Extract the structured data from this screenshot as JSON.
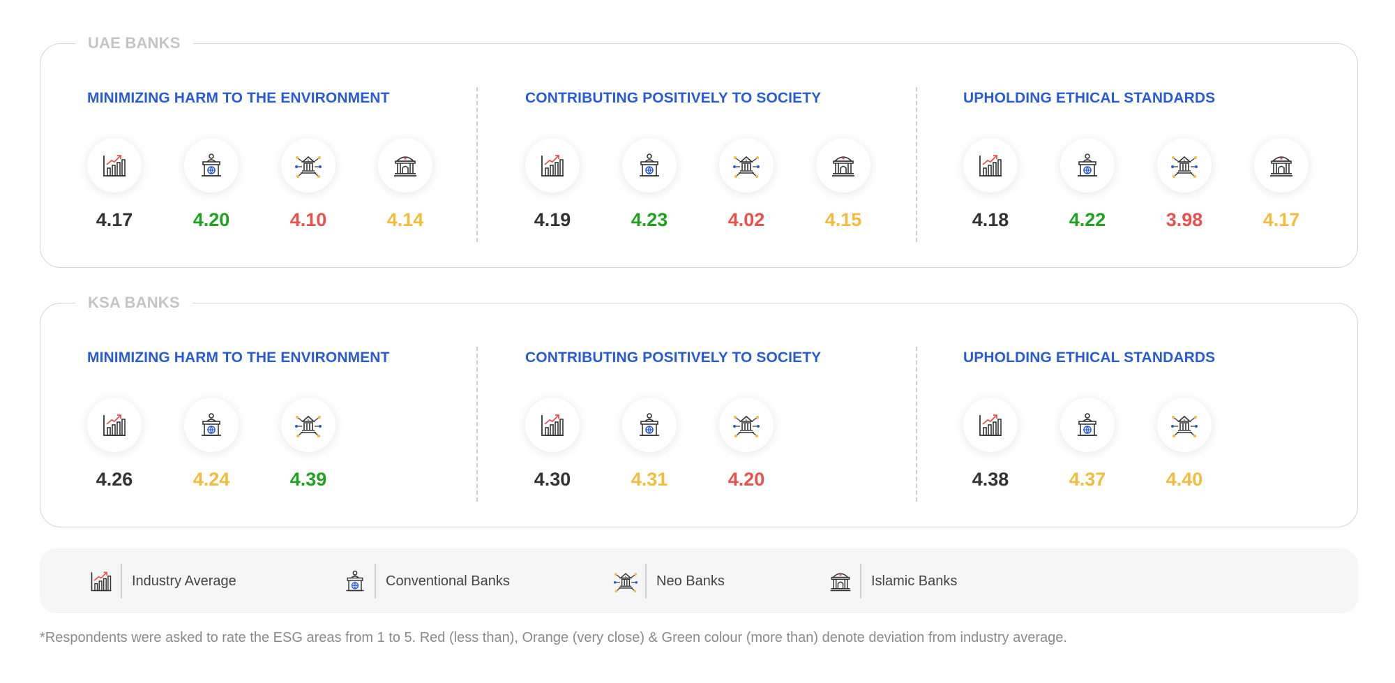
{
  "colors": {
    "title_blue": "#2a5bd7",
    "industry": "#333333",
    "more_than": "#1fa31f",
    "less_than": "#e9514d",
    "very_close": "#f2bd3d"
  },
  "legend": [
    {
      "icon": "chart-growth-icon",
      "label": "Industry Average"
    },
    {
      "icon": "bank-podium-globe-icon",
      "label": "Conventional Banks"
    },
    {
      "icon": "bank-network-icon",
      "label": "Neo Banks"
    },
    {
      "icon": "mosque-building-icon",
      "label": "Islamic Banks"
    }
  ],
  "footnote": "*Respondents were asked to rate the ESG areas from 1 to 5. Red (less than), Orange (very close) & Green colour (more than) denote deviation from industry average.",
  "chart_data": [
    {
      "type": "table",
      "title": "UAE BANKS",
      "sections": [
        {
          "title": "MINIMIZING HARM TO THE ENVIRONMENT",
          "items": [
            {
              "category": "Industry Average",
              "value": "4.17",
              "status": "industry"
            },
            {
              "category": "Conventional Banks",
              "value": "4.20",
              "status": "more_than"
            },
            {
              "category": "Neo Banks",
              "value": "4.10",
              "status": "less_than"
            },
            {
              "category": "Islamic Banks",
              "value": "4.14",
              "status": "very_close"
            }
          ]
        },
        {
          "title": "CONTRIBUTING POSITIVELY TO SOCIETY",
          "items": [
            {
              "category": "Industry Average",
              "value": "4.19",
              "status": "industry"
            },
            {
              "category": "Conventional Banks",
              "value": "4.23",
              "status": "more_than"
            },
            {
              "category": "Neo Banks",
              "value": "4.02",
              "status": "less_than"
            },
            {
              "category": "Islamic Banks",
              "value": "4.15",
              "status": "very_close"
            }
          ]
        },
        {
          "title": "UPHOLDING ETHICAL STANDARDS",
          "items": [
            {
              "category": "Industry Average",
              "value": "4.18",
              "status": "industry"
            },
            {
              "category": "Conventional Banks",
              "value": "4.22",
              "status": "more_than"
            },
            {
              "category": "Neo Banks",
              "value": "3.98",
              "status": "less_than"
            },
            {
              "category": "Islamic Banks",
              "value": "4.17",
              "status": "very_close"
            }
          ]
        }
      ]
    },
    {
      "type": "table",
      "title": "KSA BANKS",
      "sections": [
        {
          "title": "MINIMIZING HARM TO THE ENVIRONMENT",
          "items": [
            {
              "category": "Industry Average",
              "value": "4.26",
              "status": "industry"
            },
            {
              "category": "Conventional Banks",
              "value": "4.24",
              "status": "very_close"
            },
            {
              "category": "Neo Banks",
              "value": "4.39",
              "status": "more_than"
            }
          ]
        },
        {
          "title": "CONTRIBUTING POSITIVELY TO SOCIETY",
          "items": [
            {
              "category": "Industry Average",
              "value": "4.30",
              "status": "industry"
            },
            {
              "category": "Conventional Banks",
              "value": "4.31",
              "status": "very_close"
            },
            {
              "category": "Neo Banks",
              "value": "4.20",
              "status": "less_than"
            }
          ]
        },
        {
          "title": "UPHOLDING ETHICAL STANDARDS",
          "items": [
            {
              "category": "Industry Average",
              "value": "4.38",
              "status": "industry"
            },
            {
              "category": "Conventional Banks",
              "value": "4.37",
              "status": "very_close"
            },
            {
              "category": "Neo Banks",
              "value": "4.40",
              "status": "very_close"
            }
          ]
        }
      ]
    }
  ]
}
